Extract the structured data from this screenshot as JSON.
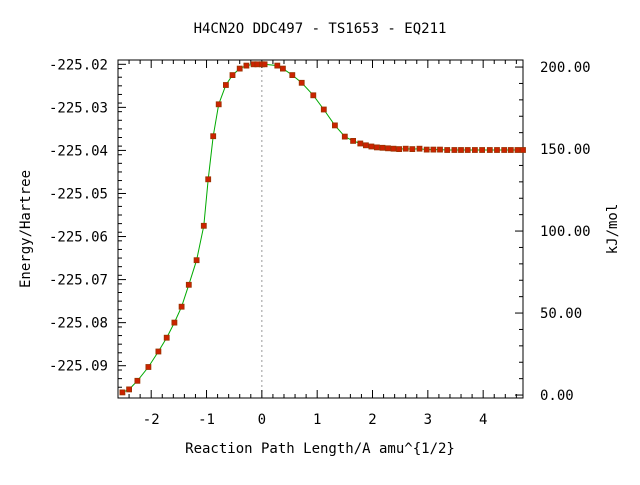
{
  "chart_data": {
    "type": "line",
    "title": "H4CN2O   DDC497 - TS1653 - EQ211",
    "xlabel": "Reaction Path Length/A amu^{1/2}",
    "ylabel": "Energy/Hartree",
    "y2label": "kJ/mol",
    "xlim": [
      -2.6,
      4.72
    ],
    "ylim": [
      -225.0975,
      -225.019
    ],
    "y2lim": [
      -1.8,
      204.3
    ],
    "x_ticks": [
      -2,
      -1,
      0,
      1,
      2,
      3,
      4
    ],
    "x_tick_labels": [
      "-2",
      "-1",
      "0",
      "1",
      "2",
      "3",
      "4"
    ],
    "y_ticks": [
      -225.02,
      -225.03,
      -225.04,
      -225.05,
      -225.06,
      -225.07,
      -225.08,
      -225.09
    ],
    "y_tick_labels": [
      "-225.02",
      "-225.03",
      "-225.04",
      "-225.05",
      "-225.06",
      "-225.07",
      "-225.08",
      "-225.09"
    ],
    "y2_ticks": [
      200,
      150,
      100,
      50,
      0
    ],
    "y2_tick_labels": [
      "200.00",
      "150.00",
      "100.00",
      "50.00",
      "0.00"
    ],
    "ts_marker_x": 0,
    "grid": false,
    "colors": {
      "line": "#00aa00",
      "marker": "#cc2200",
      "marker_edge": "#993300",
      "ts_line": "#999999"
    },
    "series": [
      {
        "x": [
          -2.52,
          -2.4,
          -2.25,
          -2.05,
          -1.87,
          -1.72,
          -1.58,
          -1.45,
          -1.32,
          -1.18,
          -1.05,
          -0.97,
          -0.88,
          -0.78,
          -0.65,
          -0.53,
          -0.4,
          -0.28,
          -0.15,
          -0.08,
          0.0,
          0.05,
          0.28,
          0.38,
          0.55,
          0.72,
          0.93,
          1.12,
          1.32,
          1.5,
          1.65,
          1.78,
          1.88,
          1.98,
          2.08,
          2.18,
          2.28,
          2.38,
          2.48,
          2.6,
          2.72,
          2.85,
          2.98,
          3.1,
          3.22,
          3.35,
          3.48,
          3.6,
          3.72,
          3.85,
          3.98,
          4.12,
          4.25,
          4.38,
          4.5,
          4.62,
          4.72
        ],
        "y": [
          -225.0962,
          -225.0955,
          -225.0935,
          -225.0903,
          -225.0867,
          -225.0835,
          -225.08,
          -225.0763,
          -225.0712,
          -225.0655,
          -225.0575,
          -225.0467,
          -225.0367,
          -225.0293,
          -225.0248,
          -225.0225,
          -225.021,
          -225.0203,
          -225.02,
          -225.02,
          -225.02,
          -225.02,
          -225.0203,
          -225.021,
          -225.0225,
          -225.0243,
          -225.0272,
          -225.0305,
          -225.0342,
          -225.0368,
          -225.0378,
          -225.0384,
          -225.0388,
          -225.0391,
          -225.0393,
          -225.0394,
          -225.0395,
          -225.0396,
          -225.0397,
          -225.0396,
          -225.0397,
          -225.0396,
          -225.0398,
          -225.0398,
          -225.0398,
          -225.0399,
          -225.0399,
          -225.0399,
          -225.0399,
          -225.0399,
          -225.0399,
          -225.0399,
          -225.0399,
          -225.0399,
          -225.0399,
          -225.0399,
          -225.0399
        ]
      }
    ]
  }
}
